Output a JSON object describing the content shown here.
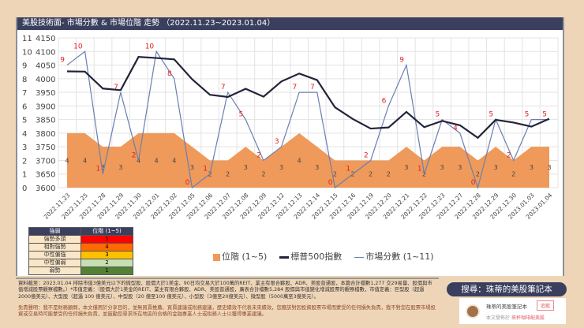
{
  "title": "美股技術面- 市場分數 & 市場位階 走勢 （2022.11.23~2023.01.04）",
  "chart_data": {
    "type": "line+area",
    "categories": [
      "2022.11.23",
      "2022.11.25",
      "2022.11.28",
      "2022.11.29",
      "2022.11.30",
      "2022.12.01",
      "2022.12.02",
      "2022.12.05",
      "2022.12.06",
      "2022.12.07",
      "2022.12.08",
      "2022.12.09",
      "2022.12.12",
      "2022.12.13",
      "2022.12.14",
      "2022.12.15",
      "2022.12.16",
      "2022.12.19",
      "2022.12.20",
      "2022.12.21",
      "2022.12.22",
      "2022.12.23",
      "2022.12.27",
      "2022.12.28",
      "2022.12.29",
      "2022.12.30",
      "2023.01.03",
      "2023.01.04"
    ],
    "series": [
      {
        "name": "位階 (1~5)",
        "type": "area",
        "color": "#ef9a5a",
        "values": [
          4,
          4,
          3,
          3,
          4,
          4,
          4,
          3,
          2,
          2,
          3,
          2,
          3,
          4,
          3,
          2,
          2,
          2,
          2,
          3,
          2,
          3,
          3,
          2,
          3,
          2,
          3,
          3
        ]
      },
      {
        "name": "標普500指數",
        "type": "line",
        "color": "#23233a",
        "values": [
          4027,
          4026,
          3964,
          3958,
          4080,
          4076,
          4071,
          3998,
          3941,
          3933,
          3963,
          3934,
          3990,
          4019,
          3995,
          3895,
          3852,
          3817,
          3821,
          3878,
          3822,
          3845,
          3829,
          3783,
          3849,
          3839,
          3824,
          3853
        ]
      },
      {
        "name": "市場分數 (1~11)",
        "type": "line",
        "color": "#6a7fb0",
        "values": [
          9,
          10,
          1,
          7,
          2,
          10,
          8,
          0,
          1,
          7,
          5,
          2,
          3,
          7,
          7,
          0,
          1,
          2,
          6,
          9,
          1,
          5,
          4,
          0,
          5,
          2,
          5,
          5
        ]
      }
    ],
    "y_left_score_ticks": [
      "0",
      "1",
      "2",
      "3",
      "4",
      "5",
      "6",
      "7",
      "8",
      "9",
      "10",
      "11"
    ],
    "y_left_price_ticks": [
      "3600",
      "3650",
      "3700",
      "3750",
      "3800",
      "3850",
      "3900",
      "3950",
      "4000",
      "4050",
      "4100",
      "4150"
    ],
    "ylim": [
      3600,
      4150
    ],
    "grid": true
  },
  "legend_table": {
    "headers": [
      "強弱",
      "位階 (1~5)"
    ],
    "rows": [
      {
        "label": "強勢多頭",
        "value": "5",
        "color": "#ff0000"
      },
      {
        "label": "相對強勢",
        "value": "4",
        "color": "#ff6a00"
      },
      {
        "label": "中性偏強",
        "value": "3",
        "color": "#ffc000"
      },
      {
        "label": "中性偏弱",
        "value": "2",
        "color": "#c6e0b4"
      },
      {
        "label": "弱勢",
        "value": "1",
        "color": "#548235"
      }
    ]
  },
  "note": {
    "data": "資料截至：2023.01.04 排除市值3億美元以下的微型股、股價大於1美金、90日均交易大於100萬的REIT、業主有限合夥股、ADR、美股普通股，本篇合計檔數1,277 交29易量、股價與市值增減股票觀察檔數。）*市值定義：（股價大於1美金的REIT、業主有限合夥股、ADR、美股普通股，廣表合計檔數5,284 股價與市值變化增減股票的觀察檔數，市值定義：巨型股（超過2000億美元）、大型股（超過 100 億美元）、中型股（20 億至100 億美元）、小型股（3億至20億美元）、微型股（5000萬至3億美元）。",
    "disclaimer": "免責聲明：我不是財務顧問，本文僅用於分享目的，並無買賣推薦、買賣建議或稅務建議，歷史績效不代表未來績效，您應該對因投資股票市場而蒙受的任何損失負責，我不對您在股票市場投資或交易時可能蒙受的任何損失負責，並鼓勵您尋求所在地區的合格的金融專業人士或稅務人士以獲得專業建議。"
  },
  "search_pill": "搜尋：珠蒂的美股筆記本",
  "promo": {
    "name": "珠蒂的美股筆記本",
    "follow": "追蹤",
    "source_prefix": "本文發佈於",
    "source_link": "來杯咖啡配美股"
  }
}
